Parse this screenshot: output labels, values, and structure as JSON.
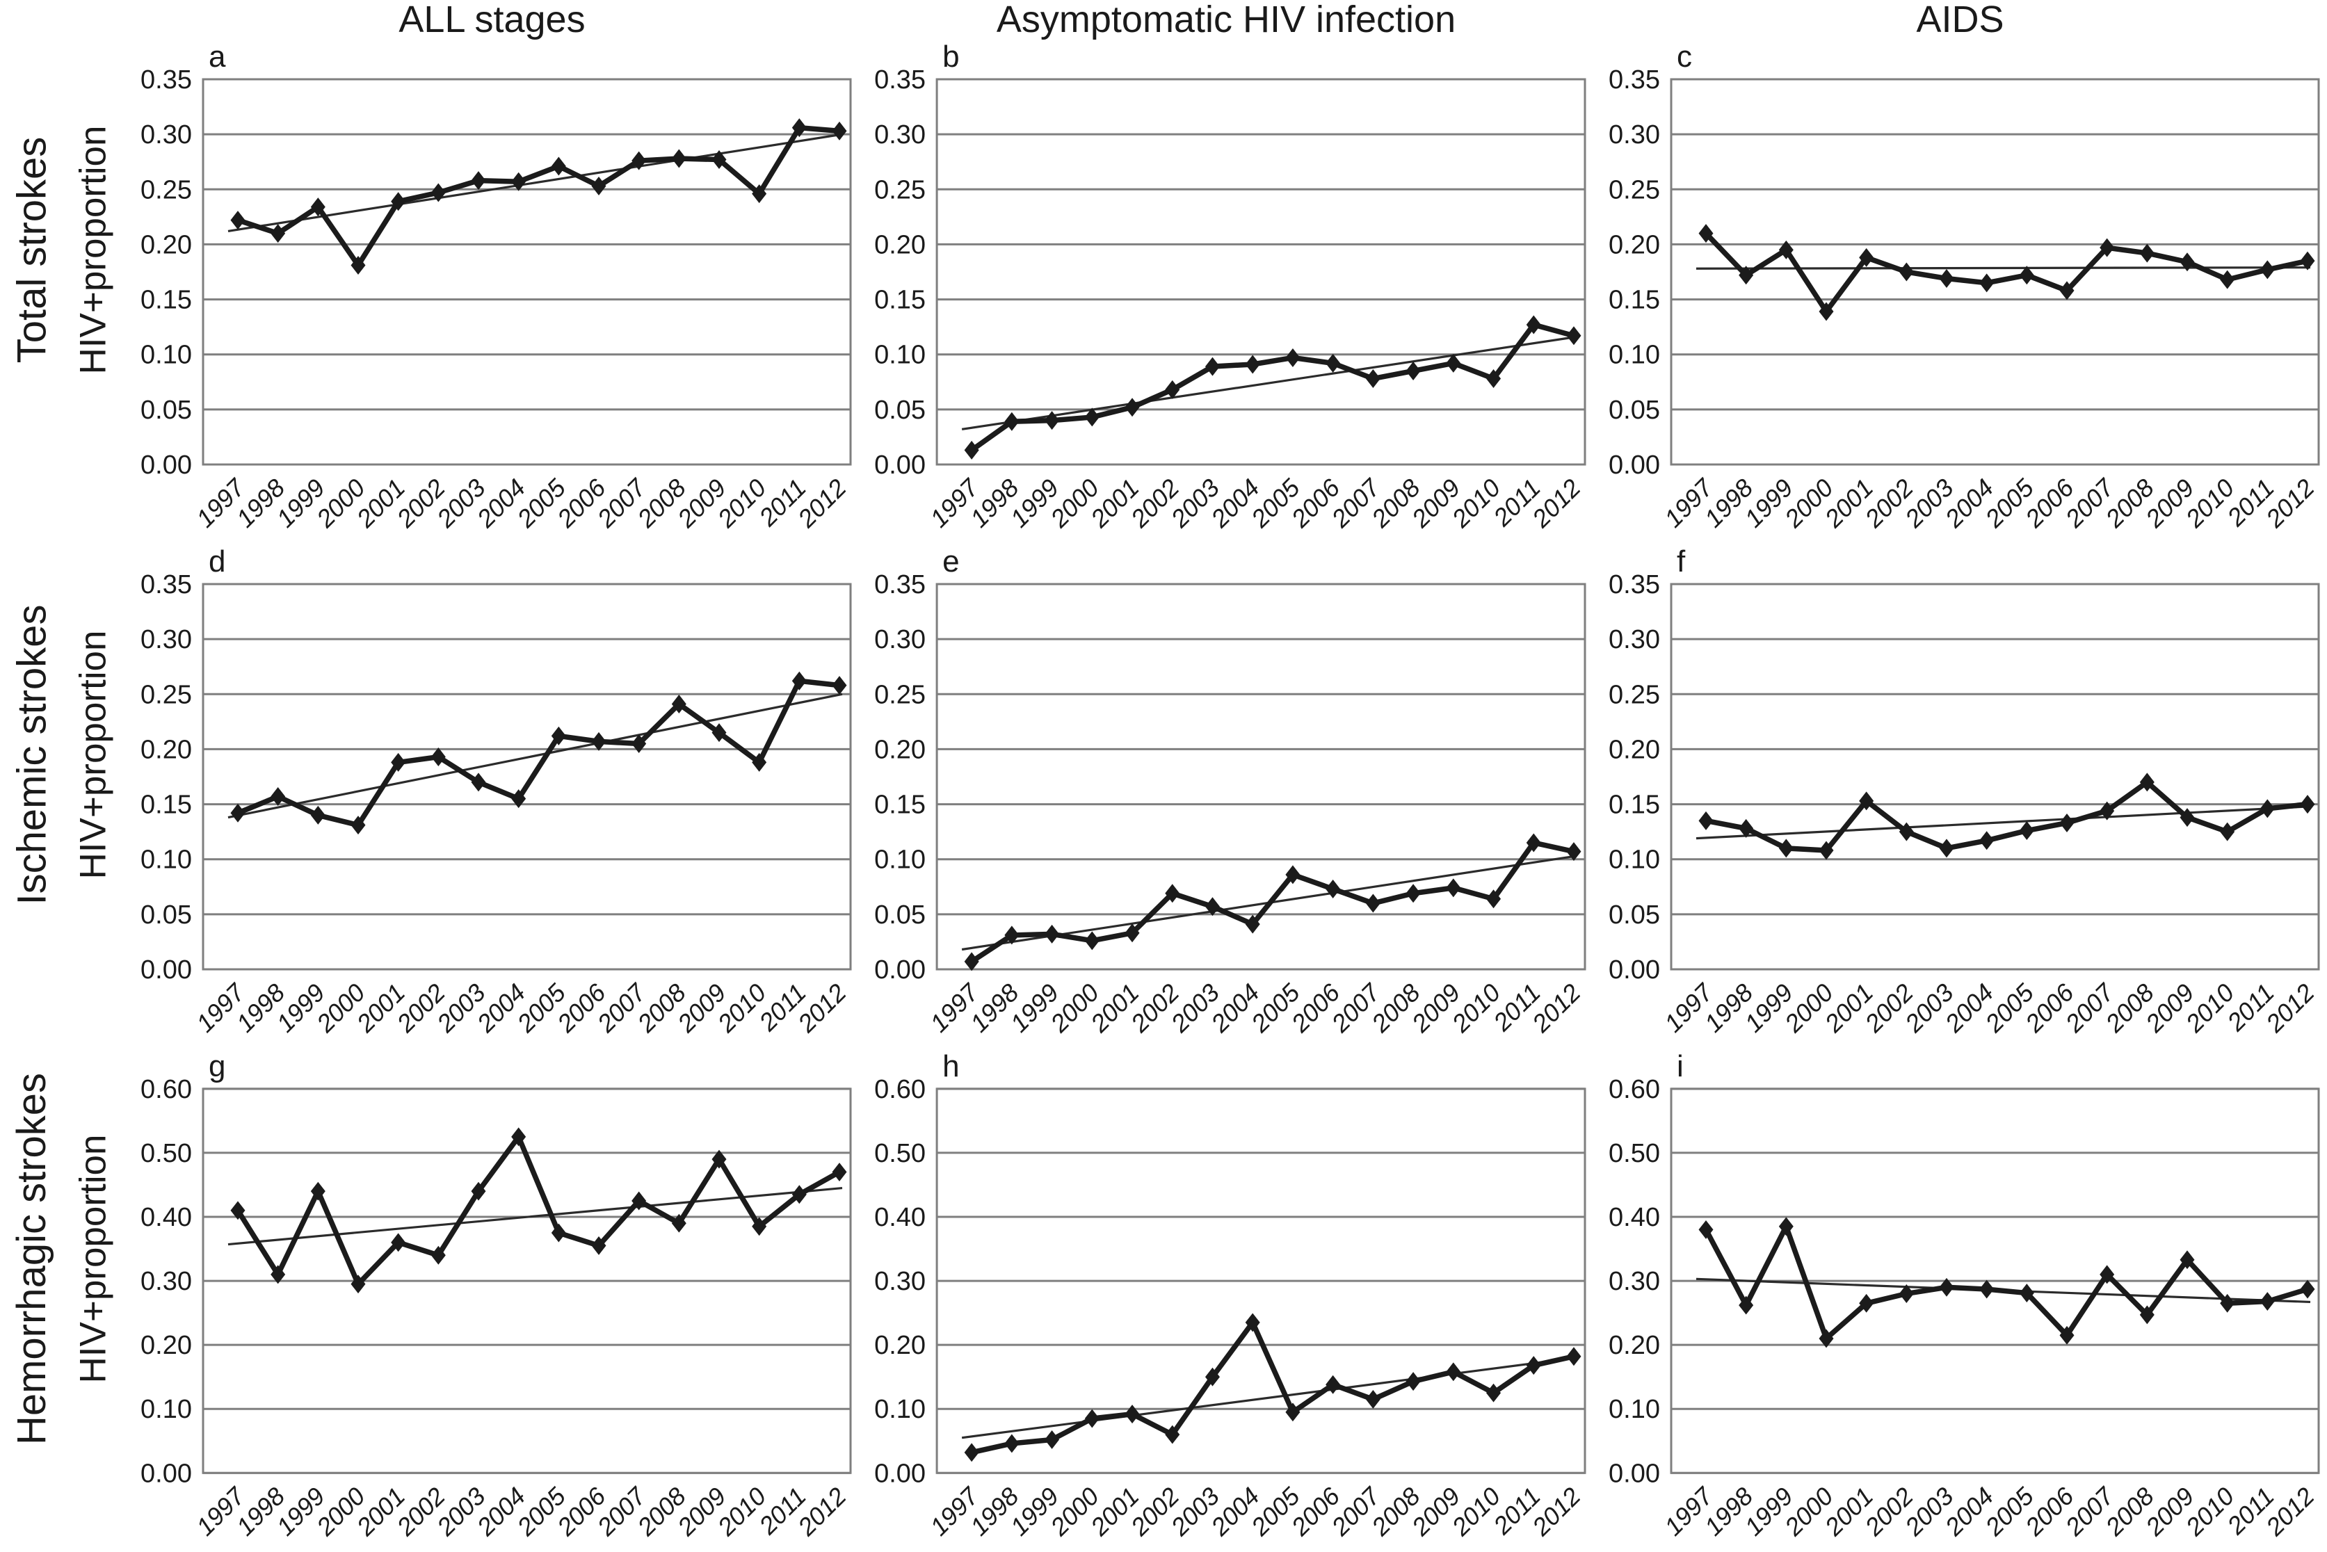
{
  "figure": {
    "columns": [
      {
        "title": "ALL stages"
      },
      {
        "title": "Asymptomatic HIV infection"
      },
      {
        "title": "AIDS"
      }
    ],
    "rows": [
      {
        "label": "Total strokes",
        "ylabel": "HIV+proportion"
      },
      {
        "label": "Ischemic strokes",
        "ylabel": "HIV+proportion"
      },
      {
        "label": "Hemorrhagic strokes",
        "ylabel": "HIV+proportion"
      }
    ]
  },
  "style": {
    "series_color": "#1b1b1b",
    "trend_color": "#2b2b2b",
    "grid_color": "#7f7f7f",
    "text_color": "#1a1a1a",
    "background": "#ffffff"
  },
  "chart_data": [
    {
      "type": "line",
      "panel": "a",
      "row": "Total strokes",
      "column": "ALL stages",
      "ylabel": "HIV+proportion",
      "x": [
        "1997",
        "1998",
        "1999",
        "2000",
        "2001",
        "2002",
        "2003",
        "2004",
        "2005",
        "2006",
        "2007",
        "2008",
        "2009",
        "2010",
        "2011",
        "2012"
      ],
      "series": [
        {
          "name": "HIV+ proportion",
          "values": [
            0.222,
            0.21,
            0.234,
            0.181,
            0.239,
            0.247,
            0.258,
            0.257,
            0.271,
            0.253,
            0.276,
            0.278,
            0.277,
            0.246,
            0.306,
            0.303
          ]
        }
      ],
      "trend": {
        "start": 0.212,
        "end": 0.3
      },
      "ylim": [
        0,
        0.35
      ],
      "yticks": [
        "0.00",
        "0.05",
        "0.10",
        "0.15",
        "0.20",
        "0.25",
        "0.30",
        "0.35"
      ],
      "grid": true,
      "legend": "none",
      "marker": "diamond"
    },
    {
      "type": "line",
      "panel": "b",
      "row": "Total strokes",
      "column": "Asymptomatic HIV infection",
      "ylabel": "HIV+proportion",
      "x": [
        "1997",
        "1998",
        "1999",
        "2000",
        "2001",
        "2002",
        "2003",
        "2004",
        "2005",
        "2006",
        "2007",
        "2008",
        "2009",
        "2010",
        "2011",
        "2012"
      ],
      "series": [
        {
          "name": "HIV+ proportion",
          "values": [
            0.013,
            0.039,
            0.04,
            0.043,
            0.052,
            0.068,
            0.089,
            0.091,
            0.097,
            0.092,
            0.078,
            0.085,
            0.092,
            0.078,
            0.127,
            0.117
          ]
        }
      ],
      "trend": {
        "start": 0.032,
        "end": 0.116
      },
      "ylim": [
        0,
        0.35
      ],
      "yticks": [
        "0.00",
        "0.05",
        "0.10",
        "0.15",
        "0.20",
        "0.25",
        "0.30",
        "0.35"
      ],
      "grid": true,
      "legend": "none",
      "marker": "diamond"
    },
    {
      "type": "line",
      "panel": "c",
      "row": "Total strokes",
      "column": "AIDS",
      "ylabel": "HIV+proportion",
      "x": [
        "1997",
        "1998",
        "1999",
        "2000",
        "2001",
        "2002",
        "2003",
        "2004",
        "2005",
        "2006",
        "2007",
        "2008",
        "2009",
        "2010",
        "2011",
        "2012"
      ],
      "series": [
        {
          "name": "HIV+ proportion",
          "values": [
            0.21,
            0.172,
            0.195,
            0.139,
            0.188,
            0.175,
            0.169,
            0.165,
            0.172,
            0.158,
            0.197,
            0.192,
            0.184,
            0.168,
            0.177,
            0.185
          ]
        }
      ],
      "trend": {
        "start": 0.178,
        "end": 0.179
      },
      "ylim": [
        0,
        0.35
      ],
      "yticks": [
        "0.00",
        "0.05",
        "0.10",
        "0.15",
        "0.20",
        "0.25",
        "0.30",
        "0.35"
      ],
      "grid": true,
      "legend": "none",
      "marker": "diamond"
    },
    {
      "type": "line",
      "panel": "d",
      "row": "Ischemic strokes",
      "column": "ALL stages",
      "ylabel": "HIV+proportion",
      "x": [
        "1997",
        "1998",
        "1999",
        "2000",
        "2001",
        "2002",
        "2003",
        "2004",
        "2005",
        "2006",
        "2007",
        "2008",
        "2009",
        "2010",
        "2011",
        "2012"
      ],
      "series": [
        {
          "name": "HIV+ proportion",
          "values": [
            0.142,
            0.157,
            0.14,
            0.131,
            0.188,
            0.193,
            0.17,
            0.155,
            0.212,
            0.207,
            0.205,
            0.241,
            0.215,
            0.188,
            0.262,
            0.258
          ]
        }
      ],
      "trend": {
        "start": 0.138,
        "end": 0.25
      },
      "ylim": [
        0,
        0.35
      ],
      "yticks": [
        "0.00",
        "0.05",
        "0.10",
        "0.15",
        "0.20",
        "0.25",
        "0.30",
        "0.35"
      ],
      "grid": true,
      "legend": "none",
      "marker": "diamond"
    },
    {
      "type": "line",
      "panel": "e",
      "row": "Ischemic strokes",
      "column": "Asymptomatic HIV infection",
      "ylabel": "HIV+proportion",
      "x": [
        "1997",
        "1998",
        "1999",
        "2000",
        "2001",
        "2002",
        "2003",
        "2004",
        "2005",
        "2006",
        "2007",
        "2008",
        "2009",
        "2010",
        "2011",
        "2012"
      ],
      "series": [
        {
          "name": "HIV+ proportion",
          "values": [
            0.007,
            0.031,
            0.032,
            0.026,
            0.033,
            0.069,
            0.057,
            0.041,
            0.086,
            0.073,
            0.06,
            0.069,
            0.074,
            0.064,
            0.115,
            0.107
          ]
        }
      ],
      "trend": {
        "start": 0.018,
        "end": 0.103
      },
      "ylim": [
        0,
        0.35
      ],
      "yticks": [
        "0.00",
        "0.05",
        "0.10",
        "0.15",
        "0.20",
        "0.25",
        "0.30",
        "0.35"
      ],
      "grid": true,
      "legend": "none",
      "marker": "diamond"
    },
    {
      "type": "line",
      "panel": "f",
      "row": "Ischemic strokes",
      "column": "AIDS",
      "ylabel": "HIV+proportion",
      "x": [
        "1997",
        "1998",
        "1999",
        "2000",
        "2001",
        "2002",
        "2003",
        "2004",
        "2005",
        "2006",
        "2007",
        "2008",
        "2009",
        "2010",
        "2011",
        "2012"
      ],
      "series": [
        {
          "name": "HIV+ proportion",
          "values": [
            0.135,
            0.128,
            0.11,
            0.108,
            0.153,
            0.125,
            0.11,
            0.117,
            0.126,
            0.133,
            0.144,
            0.17,
            0.138,
            0.125,
            0.146,
            0.15
          ]
        }
      ],
      "trend": {
        "start": 0.119,
        "end": 0.148
      },
      "ylim": [
        0,
        0.35
      ],
      "yticks": [
        "0.00",
        "0.05",
        "0.10",
        "0.15",
        "0.20",
        "0.25",
        "0.30",
        "0.35"
      ],
      "grid": true,
      "legend": "none",
      "marker": "diamond"
    },
    {
      "type": "line",
      "panel": "g",
      "row": "Hemorrhagic strokes",
      "column": "ALL stages",
      "ylabel": "HIV+proportion",
      "x": [
        "1997",
        "1998",
        "1999",
        "2000",
        "2001",
        "2002",
        "2003",
        "2004",
        "2005",
        "2006",
        "2007",
        "2008",
        "2009",
        "2010",
        "2011",
        "2012"
      ],
      "series": [
        {
          "name": "HIV+ proportion",
          "values": [
            0.41,
            0.31,
            0.44,
            0.295,
            0.36,
            0.34,
            0.44,
            0.525,
            0.375,
            0.355,
            0.425,
            0.39,
            0.49,
            0.385,
            0.435,
            0.47
          ]
        }
      ],
      "trend": {
        "start": 0.357,
        "end": 0.445
      },
      "ylim": [
        0,
        0.6
      ],
      "yticks": [
        "0.00",
        "0.10",
        "0.20",
        "0.30",
        "0.40",
        "0.50",
        "0.60"
      ],
      "grid": true,
      "legend": "none",
      "marker": "diamond"
    },
    {
      "type": "line",
      "panel": "h",
      "row": "Hemorrhagic strokes",
      "column": "Asymptomatic HIV infection",
      "ylabel": "HIV+proportion",
      "x": [
        "1997",
        "1998",
        "1999",
        "2000",
        "2001",
        "2002",
        "2003",
        "2004",
        "2005",
        "2006",
        "2007",
        "2008",
        "2009",
        "2010",
        "2011",
        "2012"
      ],
      "series": [
        {
          "name": "HIV+ proportion",
          "values": [
            0.032,
            0.046,
            0.052,
            0.085,
            0.092,
            0.06,
            0.15,
            0.235,
            0.095,
            0.138,
            0.115,
            0.143,
            0.158,
            0.125,
            0.168,
            0.182
          ]
        }
      ],
      "trend": {
        "start": 0.055,
        "end": 0.18
      },
      "ylim": [
        0,
        0.6
      ],
      "yticks": [
        "0.00",
        "0.10",
        "0.20",
        "0.30",
        "0.40",
        "0.50",
        "0.60"
      ],
      "grid": true,
      "legend": "none",
      "marker": "diamond"
    },
    {
      "type": "line",
      "panel": "i",
      "row": "Hemorrhagic strokes",
      "column": "AIDS",
      "ylabel": "HIV+proportion",
      "x": [
        "1997",
        "1998",
        "1999",
        "2000",
        "2001",
        "2002",
        "2003",
        "2004",
        "2005",
        "2006",
        "2007",
        "2008",
        "2009",
        "2010",
        "2011",
        "2012"
      ],
      "series": [
        {
          "name": "HIV+ proportion",
          "values": [
            0.38,
            0.262,
            0.385,
            0.21,
            0.265,
            0.28,
            0.29,
            0.287,
            0.281,
            0.215,
            0.31,
            0.247,
            0.333,
            0.265,
            0.268,
            0.287
          ]
        }
      ],
      "trend": {
        "start": 0.303,
        "end": 0.267
      },
      "ylim": [
        0,
        0.6
      ],
      "yticks": [
        "0.00",
        "0.10",
        "0.20",
        "0.30",
        "0.40",
        "0.50",
        "0.60"
      ],
      "grid": true,
      "legend": "none",
      "marker": "diamond"
    }
  ]
}
